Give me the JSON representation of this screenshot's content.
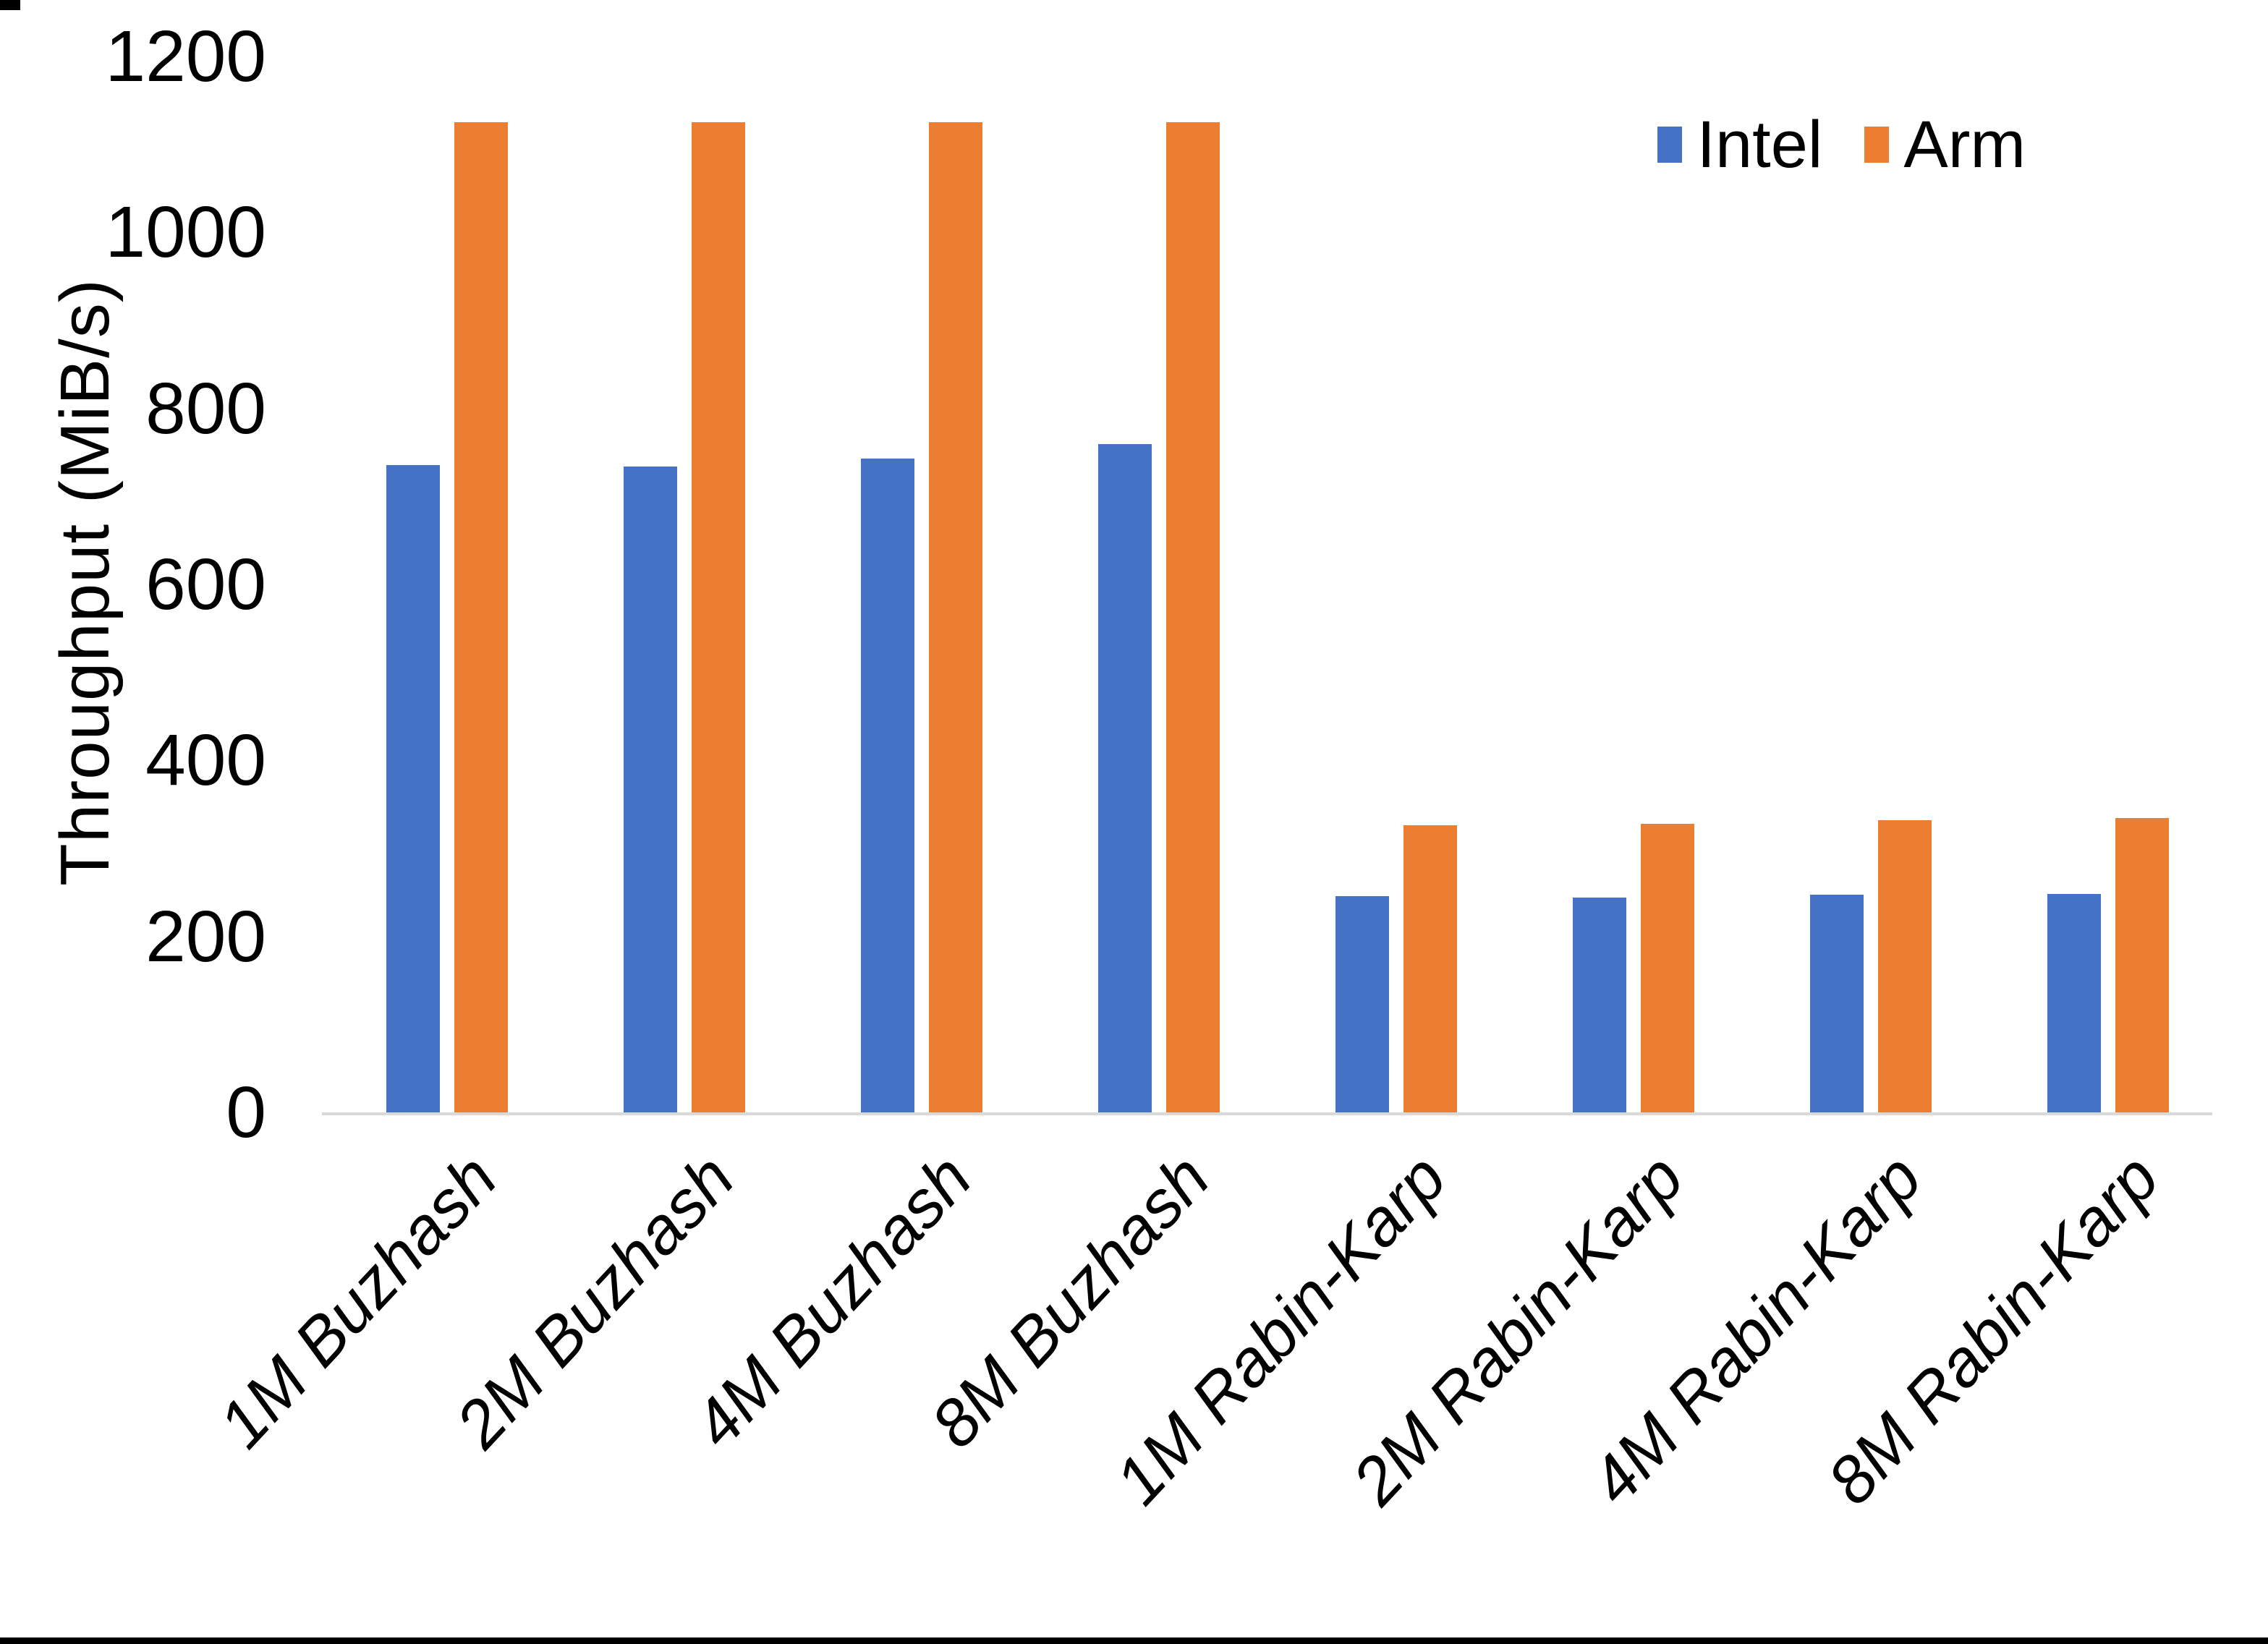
{
  "chart_data": {
    "type": "bar",
    "title": "",
    "xlabel": "",
    "ylabel": "Throughput (MiB/s)",
    "ylim": [
      0,
      1200
    ],
    "yticks": [
      0,
      200,
      400,
      600,
      800,
      1000,
      1200
    ],
    "grid": false,
    "legend_position": "top-right",
    "categories": [
      "1M Buzhash",
      "2M Buzhash",
      "4M Buzhash",
      "8M Buzhash",
      "1M Rabin-Karp",
      "2M Rabin-Karp",
      "4M Rabin-Karp",
      "8M Rabin-Karp"
    ],
    "series": [
      {
        "name": "Intel",
        "color": "#4472C4",
        "values": [
          737,
          736,
          745,
          761,
          247,
          246,
          249,
          250
        ]
      },
      {
        "name": "Arm",
        "color": "#ED7D31",
        "values": [
          1127,
          1127,
          1127,
          1127,
          328,
          330,
          334,
          336
        ]
      }
    ]
  },
  "legend": {
    "items": [
      {
        "label": "Intel",
        "color": "#4472C4"
      },
      {
        "label": "Arm",
        "color": "#ED7D31"
      }
    ]
  },
  "colors": {
    "background": "#FFFFFF",
    "axis_line": "#D9D9D9",
    "text": "#000000",
    "bottom_border": "#000000"
  }
}
